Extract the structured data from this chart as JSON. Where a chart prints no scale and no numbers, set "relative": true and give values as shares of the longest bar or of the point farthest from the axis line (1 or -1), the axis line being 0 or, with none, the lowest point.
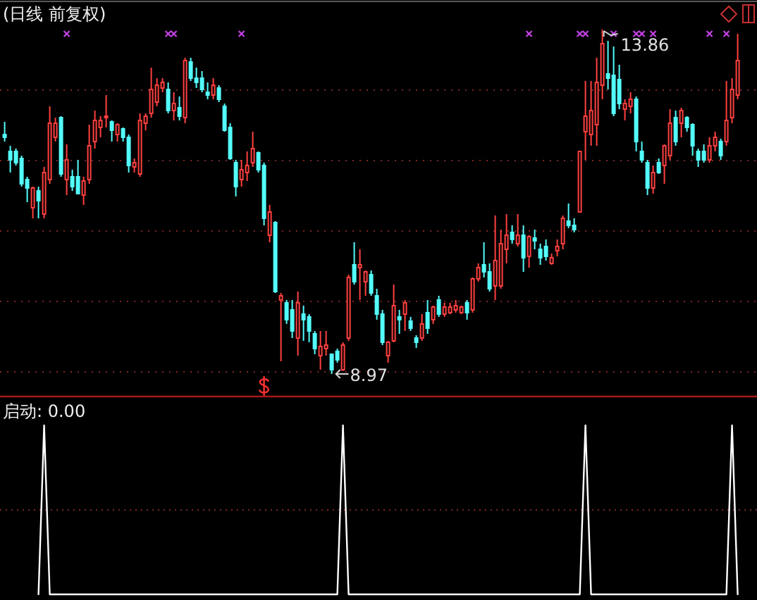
{
  "chart_data": [
    {
      "type": "candlestick",
      "title": "(日线 前复权)",
      "categories": [
        null,
        null,
        null,
        null,
        null,
        null,
        null,
        null,
        null,
        null,
        null,
        null,
        null,
        null,
        null,
        null,
        null,
        null,
        null,
        null,
        null,
        null,
        null,
        null,
        null,
        null,
        null,
        null,
        null,
        null,
        null,
        null,
        null,
        null,
        null,
        null,
        null,
        null,
        null,
        null,
        null,
        null,
        null,
        null,
        null,
        null,
        null,
        null,
        null,
        null,
        null,
        null,
        null,
        null,
        null,
        null,
        null,
        null,
        null,
        null,
        null,
        null,
        null,
        null,
        null,
        null,
        null,
        null,
        null,
        null,
        null,
        null,
        null,
        null,
        null,
        null,
        null,
        null,
        null,
        null,
        null,
        null,
        null,
        null,
        null,
        null,
        null,
        null,
        null,
        null,
        null,
        null,
        null,
        null,
        null,
        null,
        null,
        null,
        null,
        null,
        null,
        null,
        null,
        null,
        null,
        null,
        null,
        null,
        null,
        null,
        null,
        null,
        null,
        null,
        null,
        null,
        null,
        null,
        null,
        null,
        null,
        null,
        null,
        null,
        null,
        null,
        null,
        null,
        null,
        null,
        null
      ],
      "ohlc": [
        [
          12.37,
          12.55,
          12.27,
          12.33
        ],
        [
          12.13,
          12.21,
          11.83,
          12.01
        ],
        [
          12.13,
          12.17,
          11.93,
          11.97
        ],
        [
          12.03,
          12.07,
          11.63,
          11.67
        ],
        [
          11.73,
          11.77,
          11.41,
          11.61
        ],
        [
          11.33,
          11.63,
          11.18,
          11.61
        ],
        [
          11.57,
          11.63,
          11.18,
          11.43
        ],
        [
          11.24,
          11.91,
          11.18,
          11.83
        ],
        [
          11.73,
          12.77,
          11.67,
          12.53
        ],
        [
          12.33,
          12.61,
          12.27,
          12.53
        ],
        [
          12.61,
          12.63,
          11.77,
          11.81
        ],
        [
          11.73,
          12.23,
          11.51,
          12.01
        ],
        [
          11.77,
          11.87,
          11.57,
          11.63
        ],
        [
          11.77,
          12.01,
          11.53,
          11.53
        ],
        [
          11.51,
          11.77,
          11.37,
          11.71
        ],
        [
          11.73,
          12.51,
          11.67,
          12.21
        ],
        [
          12.27,
          12.71,
          12.17,
          12.57
        ],
        [
          12.47,
          12.63,
          12.33,
          12.57
        ],
        [
          12.61,
          12.93,
          12.47,
          12.63
        ],
        [
          12.55,
          12.57,
          12.27,
          12.43
        ],
        [
          12.37,
          12.53,
          12.27,
          12.51
        ],
        [
          12.45,
          12.47,
          12.27,
          12.33
        ],
        [
          12.33,
          12.37,
          11.83,
          11.93
        ],
        [
          11.91,
          12.03,
          11.83,
          11.97
        ],
        [
          11.81,
          12.67,
          11.77,
          12.57
        ],
        [
          12.53,
          12.67,
          12.43,
          12.63
        ],
        [
          12.67,
          13.32,
          12.61,
          13.01
        ],
        [
          12.83,
          13.17,
          12.77,
          13.07
        ],
        [
          13.03,
          13.17,
          12.97,
          13.11
        ],
        [
          13.01,
          13.11,
          12.67,
          12.71
        ],
        [
          12.71,
          12.97,
          12.57,
          12.81
        ],
        [
          12.75,
          12.91,
          12.57,
          12.63
        ],
        [
          12.61,
          13.46,
          12.53,
          13.42
        ],
        [
          13.4,
          13.46,
          13.13,
          13.17
        ],
        [
          13.17,
          13.32,
          13.03,
          13.11
        ],
        [
          13.17,
          13.27,
          12.97,
          13.01
        ],
        [
          12.97,
          13.11,
          12.87,
          12.93
        ],
        [
          12.93,
          13.17,
          12.87,
          13.07
        ],
        [
          13.03,
          13.07,
          12.83,
          12.87
        ],
        [
          12.77,
          12.81,
          12.41,
          12.43
        ],
        [
          12.47,
          12.53,
          12.01,
          12.03
        ],
        [
          11.97,
          12.01,
          11.49,
          11.63
        ],
        [
          11.73,
          12.01,
          11.63,
          11.87
        ],
        [
          11.83,
          12.13,
          11.71,
          11.93
        ],
        [
          11.97,
          12.41,
          11.91,
          12.17
        ],
        [
          12.11,
          12.13,
          11.83,
          11.87
        ],
        [
          11.93,
          11.97,
          11.08,
          11.18
        ],
        [
          10.94,
          11.37,
          10.84,
          11.27
        ],
        [
          11.12,
          11.14,
          10.12,
          10.14
        ],
        [
          10.02,
          10.12,
          9.15,
          10.08
        ],
        [
          9.98,
          10.02,
          9.68,
          9.74
        ],
        [
          9.88,
          10.02,
          9.48,
          9.58
        ],
        [
          9.48,
          10.14,
          9.23,
          9.98
        ],
        [
          9.82,
          9.94,
          9.44,
          9.74
        ],
        [
          9.78,
          9.82,
          9.42,
          9.58
        ],
        [
          9.54,
          9.58,
          9.25,
          9.33
        ],
        [
          9.23,
          9.58,
          9.03,
          9.36
        ],
        [
          9.33,
          9.58,
          9.23,
          9.38
        ],
        [
          9.25,
          9.25,
          8.97,
          9.03
        ],
        [
          9.29,
          9.33,
          9.13,
          9.17
        ],
        [
          9.03,
          9.42,
          9.01,
          9.38
        ],
        [
          9.48,
          10.38,
          9.44,
          10.34
        ],
        [
          10.52,
          10.84,
          10.24,
          10.28
        ],
        [
          10.48,
          10.74,
          10.02,
          10.52
        ],
        [
          10.28,
          10.44,
          10.08,
          10.42
        ],
        [
          10.38,
          10.44,
          10.08,
          10.12
        ],
        [
          10.08,
          10.18,
          9.74,
          9.82
        ],
        [
          9.82,
          9.88,
          9.38,
          9.42
        ],
        [
          9.23,
          9.44,
          9.13,
          9.42
        ],
        [
          9.44,
          10.24,
          9.42,
          9.94
        ],
        [
          9.78,
          9.88,
          9.54,
          9.74
        ],
        [
          9.82,
          10.02,
          9.58,
          9.98
        ],
        [
          9.72,
          9.78,
          9.58,
          9.62
        ],
        [
          9.48,
          9.52,
          9.34,
          9.42
        ],
        [
          9.48,
          9.82,
          9.44,
          9.68
        ],
        [
          9.84,
          10.02,
          9.54,
          9.62
        ],
        [
          9.74,
          9.94,
          9.68,
          9.92
        ],
        [
          10.02,
          10.08,
          9.78,
          9.82
        ],
        [
          9.82,
          9.98,
          9.78,
          9.92
        ],
        [
          9.84,
          9.98,
          9.82,
          9.92
        ],
        [
          9.88,
          10.02,
          9.84,
          9.94
        ],
        [
          9.84,
          9.94,
          9.82,
          9.92
        ],
        [
          9.98,
          10.02,
          9.74,
          9.84
        ],
        [
          9.88,
          10.34,
          9.84,
          10.32
        ],
        [
          10.32,
          10.54,
          10.28,
          10.48
        ],
        [
          10.52,
          10.84,
          10.34,
          10.42
        ],
        [
          10.42,
          10.54,
          10.14,
          10.18
        ],
        [
          10.22,
          11.22,
          10.02,
          10.58
        ],
        [
          10.22,
          11.02,
          10.18,
          10.82
        ],
        [
          10.74,
          11.24,
          10.54,
          10.94
        ],
        [
          10.98,
          11.08,
          10.82,
          10.88
        ],
        [
          10.82,
          11.24,
          10.78,
          10.94
        ],
        [
          10.94,
          11.08,
          10.42,
          10.62
        ],
        [
          10.64,
          10.94,
          10.48,
          10.92
        ],
        [
          10.9,
          11.02,
          10.74,
          10.86
        ],
        [
          10.74,
          10.82,
          10.52,
          10.62
        ],
        [
          10.78,
          10.88,
          10.58,
          10.64
        ],
        [
          10.54,
          10.68,
          10.52,
          10.62
        ],
        [
          10.72,
          10.88,
          10.64,
          10.78
        ],
        [
          10.82,
          11.22,
          10.74,
          11.18
        ],
        [
          11.14,
          11.39,
          11.04,
          11.08
        ],
        [
          11.08,
          11.18,
          10.98,
          11.02
        ],
        [
          11.27,
          12.13,
          11.27,
          12.13
        ],
        [
          12.41,
          13.13,
          12.01,
          12.63
        ],
        [
          12.37,
          13.13,
          12.21,
          12.71
        ],
        [
          12.51,
          13.46,
          12.21,
          13.11
        ],
        [
          13.07,
          13.86,
          12.87,
          13.66
        ],
        [
          13.23,
          13.7,
          13.01,
          13.17
        ],
        [
          13.21,
          13.62,
          12.63,
          12.67
        ],
        [
          13.15,
          13.36,
          12.73,
          12.81
        ],
        [
          12.73,
          12.87,
          12.57,
          12.81
        ],
        [
          12.77,
          12.97,
          12.67,
          12.87
        ],
        [
          12.87,
          12.91,
          12.13,
          12.27
        ],
        [
          12.13,
          12.27,
          11.97,
          12.01
        ],
        [
          11.97,
          12.01,
          11.51,
          11.61
        ],
        [
          11.61,
          11.93,
          11.53,
          11.83
        ],
        [
          11.97,
          12.03,
          11.81,
          11.83
        ],
        [
          11.93,
          12.23,
          11.67,
          12.21
        ],
        [
          12.07,
          12.73,
          12.01,
          12.53
        ],
        [
          12.61,
          12.71,
          12.21,
          12.27
        ],
        [
          12.53,
          12.75,
          12.33,
          12.71
        ],
        [
          12.61,
          12.63,
          12.41,
          12.47
        ],
        [
          12.51,
          12.53,
          12.07,
          12.21
        ],
        [
          12.13,
          12.17,
          11.91,
          12.01
        ],
        [
          12.13,
          12.23,
          11.97,
          12.01
        ],
        [
          12.01,
          12.33,
          11.97,
          12.21
        ],
        [
          12.21,
          12.41,
          12.13,
          12.33
        ],
        [
          12.27,
          12.31,
          12.01,
          12.07
        ],
        [
          12.27,
          13.13,
          12.21,
          12.57
        ],
        [
          12.61,
          13.17,
          12.53,
          13.01
        ],
        [
          12.93,
          13.8,
          12.87,
          13.42
        ]
      ],
      "colors": [
        "#54fcfc",
        "#54fcfc",
        "#54fcfc",
        "#54fcfc",
        "#54fcfc",
        "#ff4040",
        "#54fcfc",
        "#ff4040",
        "#ff4040",
        "#ff4040",
        "#54fcfc",
        "#ff4040",
        "#54fcfc",
        "#54fcfc",
        "#ff4040",
        "#ff4040",
        "#ff4040",
        "#ff4040",
        "#ff4040",
        "#54fcfc",
        "#ff4040",
        "#54fcfc",
        "#54fcfc",
        "#ff4040",
        "#ff4040",
        "#ff4040",
        "#ff4040",
        "#ff4040",
        "#ff4040",
        "#54fcfc",
        "#ff4040",
        "#54fcfc",
        "#ff4040",
        "#54fcfc",
        "#54fcfc",
        "#54fcfc",
        "#54fcfc",
        "#ff4040",
        "#54fcfc",
        "#54fcfc",
        "#54fcfc",
        "#54fcfc",
        "#ff4040",
        "#ff4040",
        "#ff4040",
        "#54fcfc",
        "#54fcfc",
        "#ff4040",
        "#54fcfc",
        "#ff4040",
        "#54fcfc",
        "#54fcfc",
        "#ff4040",
        "#54fcfc",
        "#54fcfc",
        "#54fcfc",
        "#ff4040",
        "#ff4040",
        "#54fcfc",
        "#54fcfc",
        "#ff4040",
        "#ff4040",
        "#54fcfc",
        "#ff4040",
        "#ff4040",
        "#54fcfc",
        "#54fcfc",
        "#54fcfc",
        "#ff4040",
        "#ff4040",
        "#54fcfc",
        "#ff4040",
        "#54fcfc",
        "#54fcfc",
        "#ff4040",
        "#54fcfc",
        "#ff4040",
        "#54fcfc",
        "#ff4040",
        "#ff4040",
        "#ff4040",
        "#ff4040",
        "#54fcfc",
        "#ff4040",
        "#ff4040",
        "#54fcfc",
        "#54fcfc",
        "#ff4040",
        "#ff4040",
        "#ff4040",
        "#54fcfc",
        "#ff4040",
        "#54fcfc",
        "#ff4040",
        "#54fcfc",
        "#54fcfc",
        "#54fcfc",
        "#ff4040",
        "#ff4040",
        "#ff4040",
        "#54fcfc",
        "#54fcfc",
        "#ff4040",
        "#ff4040",
        "#ff4040",
        "#ff4040",
        "#ff4040",
        "#54fcfc",
        "#54fcfc",
        "#54fcfc",
        "#ff4040",
        "#ff4040",
        "#54fcfc",
        "#54fcfc",
        "#54fcfc",
        "#ff4040",
        "#54fcfc",
        "#ff4040",
        "#ff4040",
        "#54fcfc",
        "#ff4040",
        "#54fcfc",
        "#54fcfc",
        "#54fcfc",
        "#54fcfc",
        "#ff4040",
        "#ff4040",
        "#54fcfc",
        "#ff4040",
        "#ff4040",
        "#ff4040"
      ],
      "ylim": [
        8.68,
        14.26
      ],
      "yticks": [
        {
          "value": 9,
          "label": null
        },
        {
          "value": 10,
          "label": null
        },
        {
          "value": 11,
          "label": null
        },
        {
          "value": 12,
          "label": null
        },
        {
          "value": 13,
          "label": null
        }
      ],
      "grid": "y",
      "annotations": [
        {
          "text": "13.86",
          "y": 13.86
        },
        "8.97"
      ],
      "series": [
        {
          "type": "scatter",
          "color": "#c040e0",
          "marker": "cross",
          "values": [
            null,
            null,
            null,
            null,
            null,
            null,
            null,
            null,
            null,
            null,
            null,
            13.8,
            null,
            null,
            null,
            null,
            null,
            null,
            null,
            null,
            null,
            null,
            null,
            null,
            null,
            null,
            null,
            null,
            null,
            13.8,
            13.8,
            null,
            null,
            null,
            null,
            null,
            null,
            null,
            null,
            null,
            null,
            null,
            13.8,
            null,
            null,
            null,
            null,
            null,
            null,
            null,
            null,
            null,
            null,
            null,
            null,
            null,
            null,
            null,
            null,
            null,
            null,
            null,
            null,
            null,
            null,
            null,
            null,
            null,
            null,
            null,
            null,
            null,
            null,
            null,
            null,
            null,
            null,
            null,
            null,
            null,
            null,
            null,
            null,
            null,
            null,
            null,
            null,
            null,
            null,
            null,
            null,
            null,
            null,
            13.8,
            null,
            null,
            null,
            null,
            null,
            null,
            null,
            null,
            13.8,
            13.8,
            null,
            null,
            null,
            null,
            13.8,
            null,
            null,
            null,
            13.8,
            13.8,
            null,
            13.8,
            null,
            null,
            null,
            null,
            null,
            null,
            null,
            null,
            null,
            13.8,
            null,
            null,
            13.8,
            null,
            null
          ]
        }
      ]
    },
    {
      "type": "line",
      "title": "启动: 0.00",
      "categories": [
        null,
        null,
        null,
        null,
        null,
        null,
        null,
        null,
        null,
        null,
        null,
        null,
        null,
        null,
        null,
        null,
        null,
        null,
        null,
        null,
        null,
        null,
        null,
        null,
        null,
        null,
        null,
        null,
        null,
        null,
        null,
        null,
        null,
        null,
        null,
        null,
        null,
        null,
        null,
        null,
        null,
        null,
        null,
        null,
        null,
        null,
        null,
        null,
        null,
        null,
        null,
        null,
        null,
        null,
        null,
        null,
        null,
        null,
        null,
        null,
        null,
        null,
        null,
        null,
        null,
        null,
        null,
        null,
        null,
        null,
        null,
        null,
        null,
        null,
        null,
        null,
        null,
        null,
        null,
        null,
        null,
        null,
        null,
        null,
        null,
        null,
        null,
        null,
        null,
        null,
        null,
        null,
        null,
        null,
        null,
        null,
        null,
        null,
        null,
        null,
        null,
        null,
        null,
        null,
        null,
        null,
        null,
        null,
        null,
        null,
        null,
        null,
        null,
        null,
        null,
        null,
        null,
        null,
        null,
        null,
        null,
        null,
        null,
        null,
        null,
        null,
        null,
        null,
        null,
        null,
        null
      ],
      "relative": true,
      "series": [
        {
          "color": "#ffffff",
          "values": [
            null,
            null,
            null,
            null,
            null,
            null,
            0,
            1,
            0,
            0,
            0,
            0,
            0,
            0,
            0,
            0,
            0,
            0,
            0,
            0,
            0,
            0,
            0,
            0,
            0,
            0,
            0,
            0,
            0,
            0,
            0,
            0,
            0,
            0,
            0,
            0,
            0,
            0,
            0,
            0,
            0,
            0,
            0,
            0,
            0,
            0,
            0,
            0,
            0,
            0,
            0,
            0,
            0,
            0,
            0,
            0,
            0,
            0,
            0,
            0,
            1,
            0,
            0,
            0,
            0,
            0,
            0,
            0,
            0,
            0,
            0,
            0,
            0,
            0,
            0,
            0,
            0,
            0,
            0,
            0,
            0,
            0,
            0,
            0,
            0,
            0,
            0,
            0,
            0,
            0,
            0,
            0,
            0,
            0,
            0,
            0,
            0,
            0,
            0,
            0,
            0,
            0,
            0,
            1,
            0,
            0,
            0,
            0,
            0,
            0,
            0,
            0,
            0,
            0,
            0,
            0,
            0,
            0,
            0,
            0,
            0,
            0,
            0,
            0,
            0,
            0,
            0,
            0,
            0,
            1,
            0
          ]
        }
      ],
      "ref_lines": [
        {
          "axis": "y",
          "value": 0.5,
          "color": "#7d2626",
          "line_style": "dotted"
        }
      ]
    }
  ]
}
